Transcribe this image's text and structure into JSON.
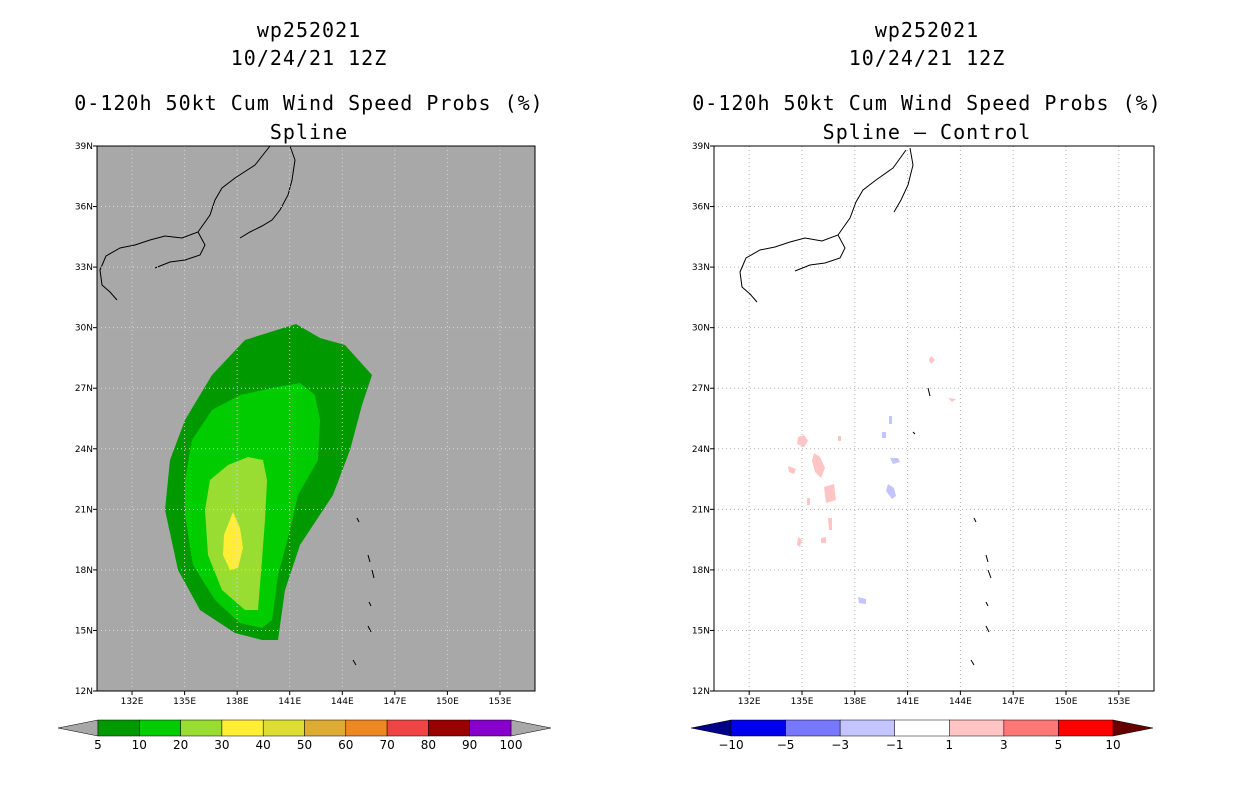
{
  "panels": [
    {
      "storm_id": "wp252021",
      "datetime": "10/24/21 12Z",
      "title": "0-120h 50kt Cum Wind Speed Probs (%)",
      "subtitle": "Spline",
      "background_color": "#a8a8a8",
      "colorbar_labels": [
        "5",
        "10",
        "20",
        "30",
        "40",
        "50",
        "60",
        "70",
        "80",
        "90",
        "100"
      ],
      "colorbar_colors": [
        "#009900",
        "#00cc00",
        "#99dd33",
        "#ffee33",
        "#dddd33",
        "#ddaa33",
        "#ee8822",
        "#ee4444",
        "#990000",
        "#8800cc"
      ]
    },
    {
      "storm_id": "wp252021",
      "datetime": "10/24/21 12Z",
      "title": "0-120h 50kt Cum Wind Speed Probs (%)",
      "subtitle": "Spline – Control",
      "background_color": "#ffffff",
      "colorbar_labels": [
        "−10",
        "−5",
        "−3",
        "−1",
        "1",
        "3",
        "5",
        "10"
      ],
      "colorbar_colors": [
        "#0000ee",
        "#7777ff",
        "#c4c4ff",
        "#ffffff",
        "#ffc4c4",
        "#ff7777",
        "#ff0000"
      ]
    }
  ],
  "chart_data": [
    {
      "type": "heatmap",
      "title": "0-120h 50kt Cum Wind Speed Probs (%)",
      "subtitle": "Spline",
      "x_ticks": [
        "132E",
        "135E",
        "138E",
        "141E",
        "144E",
        "147E",
        "150E",
        "153E"
      ],
      "y_ticks": [
        "12N",
        "15N",
        "18N",
        "21N",
        "24N",
        "27N",
        "30N",
        "33N",
        "36N",
        "39N"
      ],
      "xlim": [
        130,
        155
      ],
      "ylim": [
        12,
        39
      ],
      "grid": true,
      "contour_levels": [
        5,
        10,
        20,
        30
      ],
      "max_region": {
        "level": 30,
        "lon": [
          137.8,
          138.5
        ],
        "lat": [
          18,
          21
        ]
      }
    },
    {
      "type": "heatmap",
      "title": "0-120h 50kt Cum Wind Speed Probs (%)",
      "subtitle": "Spline – Control",
      "x_ticks": [
        "132E",
        "135E",
        "138E",
        "141E",
        "144E",
        "147E",
        "150E",
        "153E"
      ],
      "y_ticks": [
        "12N",
        "15N",
        "18N",
        "21N",
        "24N",
        "27N",
        "30N",
        "33N",
        "36N",
        "39N"
      ],
      "xlim": [
        130,
        155
      ],
      "ylim": [
        12,
        39
      ],
      "grid": true,
      "contour_levels": [
        -10,
        -5,
        -3,
        -1,
        1,
        3,
        5,
        10
      ]
    }
  ]
}
